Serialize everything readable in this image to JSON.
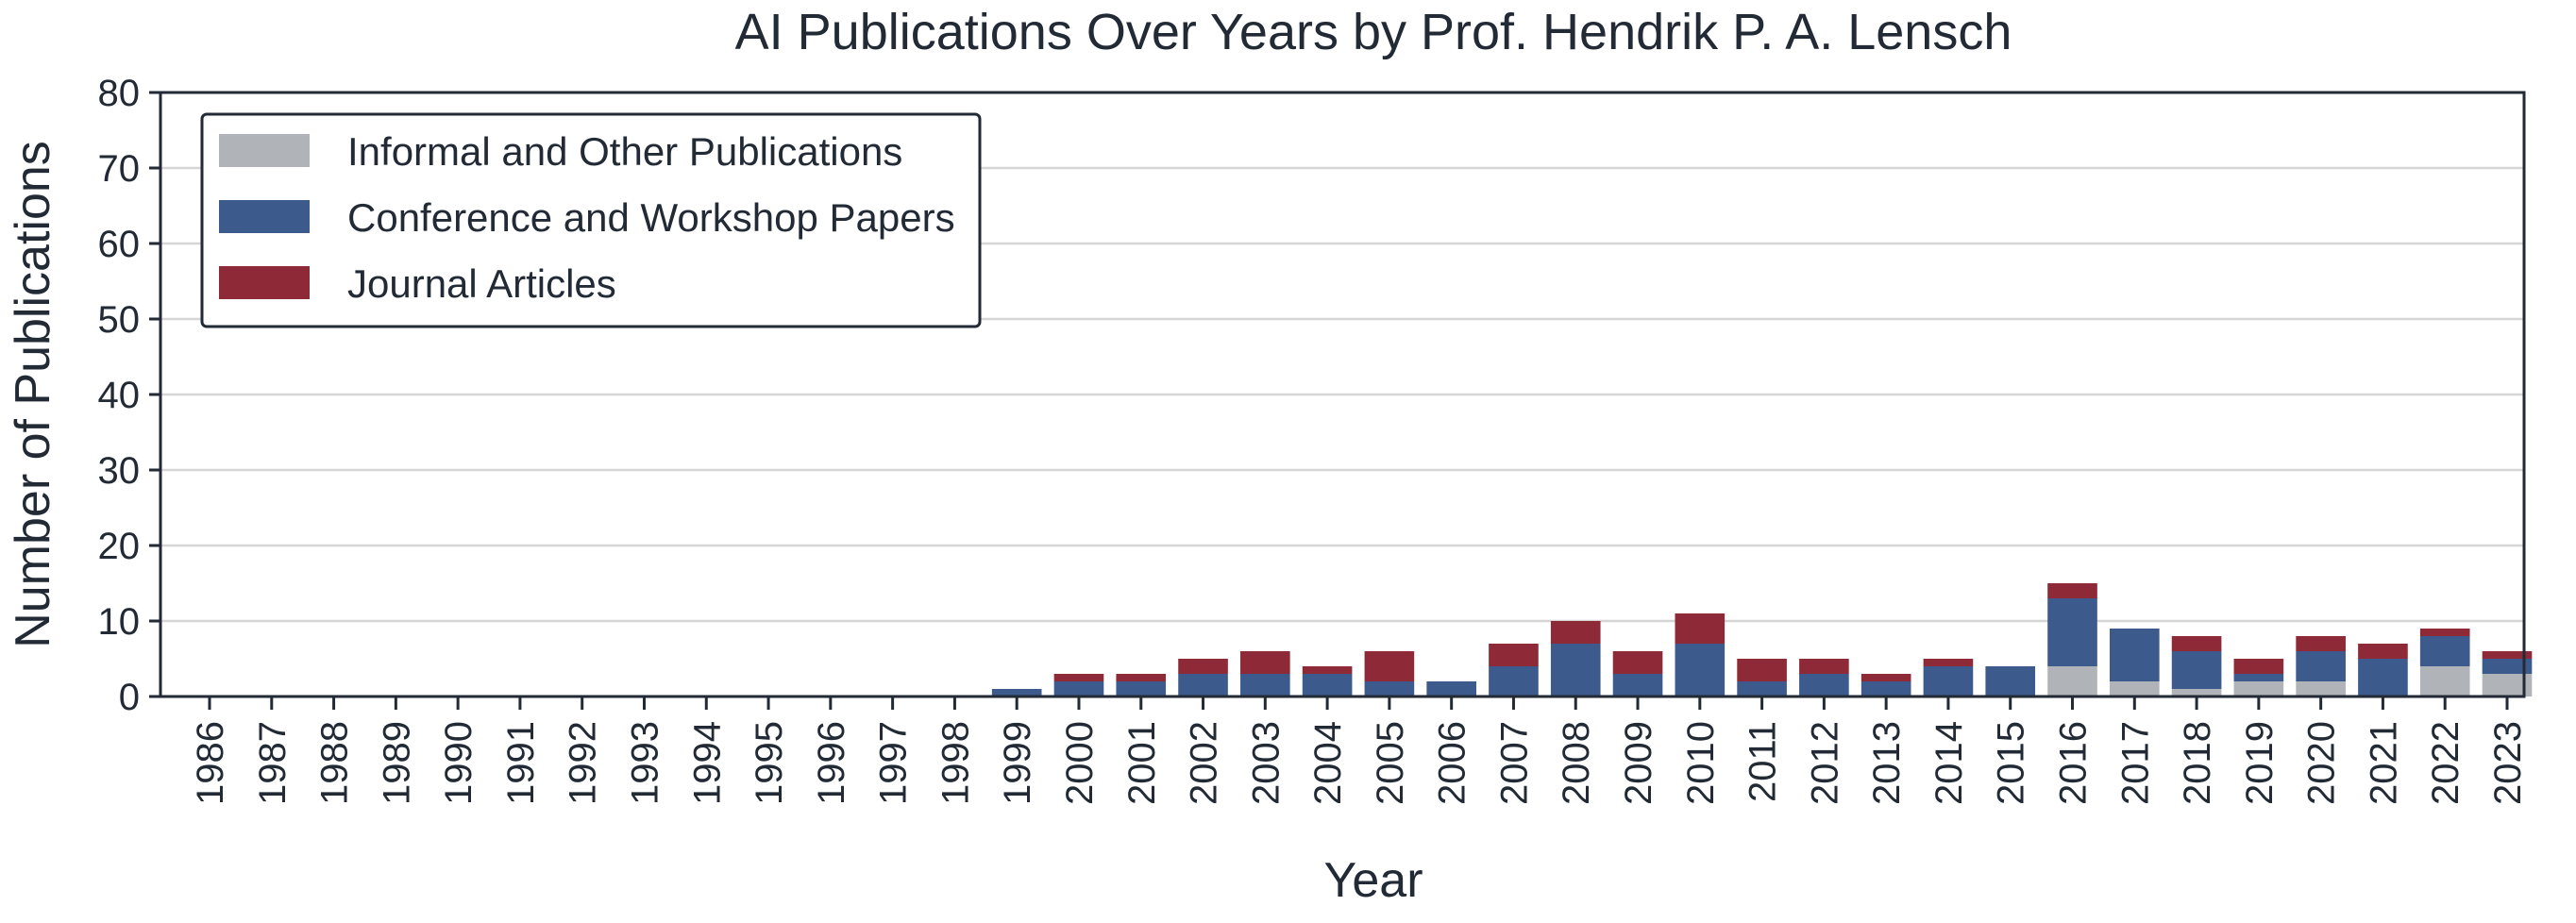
{
  "chart_data": {
    "type": "bar",
    "stacked": true,
    "title": "AI Publications Over Years by Prof. Hendrik P. A. Lensch",
    "xlabel": "Year",
    "ylabel": "Number of Publications",
    "ylim": [
      0,
      80
    ],
    "yticks": [
      "0",
      "10",
      "20",
      "30",
      "40",
      "50",
      "60",
      "70",
      "80"
    ],
    "grid": "horizontal",
    "legend_position": "top-left",
    "categories": [
      "1986",
      "1987",
      "1988",
      "1989",
      "1990",
      "1991",
      "1992",
      "1993",
      "1994",
      "1995",
      "1996",
      "1997",
      "1998",
      "1999",
      "2000",
      "2001",
      "2002",
      "2003",
      "2004",
      "2005",
      "2006",
      "2007",
      "2008",
      "2009",
      "2010",
      "2011",
      "2012",
      "2013",
      "2014",
      "2015",
      "2016",
      "2017",
      "2018",
      "2019",
      "2020",
      "2021",
      "2022",
      "2023"
    ],
    "series": [
      {
        "name": "Informal and Other Publications",
        "color": "#b0b3b8",
        "values": [
          0,
          0,
          0,
          0,
          0,
          0,
          0,
          0,
          0,
          0,
          0,
          0,
          0,
          0,
          0,
          0,
          0,
          0,
          0,
          0,
          0,
          0,
          0,
          0,
          0,
          0,
          0,
          0,
          0,
          0,
          4,
          2,
          1,
          2,
          2,
          0,
          4,
          3
        ]
      },
      {
        "name": "Conference and Workshop Papers",
        "color": "#3d5a8c",
        "values": [
          0,
          0,
          0,
          0,
          0,
          0,
          0,
          0,
          0,
          0,
          0,
          0,
          0,
          1,
          2,
          2,
          3,
          3,
          3,
          2,
          2,
          4,
          7,
          3,
          7,
          2,
          3,
          2,
          4,
          4,
          9,
          7,
          5,
          1,
          4,
          5,
          4,
          2
        ]
      },
      {
        "name": "Journal Articles",
        "color": "#8e2a38",
        "values": [
          0,
          0,
          0,
          0,
          0,
          0,
          0,
          0,
          0,
          0,
          0,
          0,
          0,
          0,
          1,
          1,
          2,
          3,
          1,
          4,
          0,
          3,
          3,
          3,
          4,
          3,
          2,
          1,
          1,
          0,
          2,
          0,
          2,
          2,
          2,
          2,
          1,
          1
        ]
      }
    ]
  }
}
